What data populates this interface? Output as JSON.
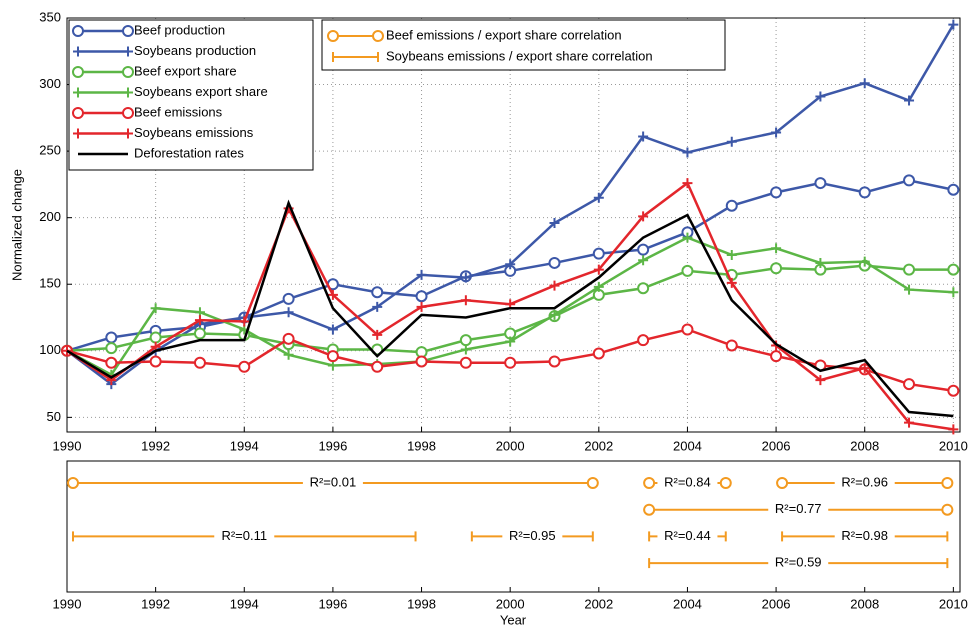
{
  "chart_data": [
    {
      "type": "line",
      "y_label": "Normalized change",
      "x": [
        1990,
        1991,
        1992,
        1993,
        1994,
        1995,
        1996,
        1997,
        1998,
        1999,
        2000,
        2001,
        2002,
        2003,
        2004,
        2005,
        2006,
        2007,
        2008,
        2009,
        2010
      ],
      "xlim": [
        1990,
        2010.15
      ],
      "xticks": [
        1990,
        1992,
        1994,
        1996,
        1998,
        2000,
        2002,
        2004,
        2006,
        2008,
        2010
      ],
      "ylim": [
        39,
        350
      ],
      "yticks": [
        50,
        100,
        150,
        200,
        250,
        300,
        350
      ],
      "grid": true,
      "legend": "upper left",
      "series": [
        {
          "name": "Beef production",
          "color": "#3d58a8",
          "marker": "o",
          "values": [
            100,
            110,
            115,
            118,
            125,
            139,
            150,
            144,
            141,
            156,
            160,
            166,
            173,
            176,
            189,
            209,
            219,
            226,
            219,
            228,
            221
          ]
        },
        {
          "name": "Soybeans production",
          "color": "#3d58a8",
          "marker": "+",
          "values": [
            100,
            75,
            100,
            120,
            125,
            129,
            116,
            133,
            157,
            155,
            165,
            196,
            215,
            261,
            249,
            257,
            264,
            291,
            301,
            288,
            345
          ]
        },
        {
          "name": "Beef export share",
          "color": "#5cb646",
          "marker": "o",
          "values": [
            100,
            102,
            110,
            113,
            112,
            105,
            101,
            101,
            99,
            108,
            113,
            126,
            142,
            147,
            160,
            157,
            162,
            161,
            164,
            161,
            161
          ]
        },
        {
          "name": "Soybeans export share",
          "color": "#5cb646",
          "marker": "+",
          "values": [
            100,
            82,
            132,
            129,
            116,
            97,
            89,
            90,
            92,
            101,
            107,
            127,
            148,
            168,
            185,
            172,
            177,
            166,
            167,
            146,
            144
          ]
        },
        {
          "name": "Beef emissions",
          "color": "#e3262c",
          "marker": "o",
          "values": [
            100,
            91,
            92,
            91,
            88,
            109,
            96,
            88,
            92,
            91,
            91,
            92,
            98,
            108,
            116,
            104,
            96,
            89,
            86,
            75,
            70
          ]
        },
        {
          "name": "Soybeans emissions",
          "color": "#e3262c",
          "marker": "+",
          "values": [
            100,
            78,
            103,
            123,
            122,
            207,
            142,
            112,
            133,
            138,
            135,
            149,
            161,
            201,
            226,
            151,
            104,
            78,
            87,
            46,
            41
          ]
        },
        {
          "name": "Deforestation rates",
          "color": "#000000",
          "marker": "none",
          "values": [
            100,
            80,
            100,
            108,
            108,
            211,
            132,
            96,
            127,
            125,
            132,
            132,
            155,
            185,
            202,
            138,
            105,
            85,
            93,
            54,
            51
          ]
        }
      ]
    },
    {
      "type": "interval",
      "x_label": "Year",
      "xlim": [
        1990,
        2010.15
      ],
      "xticks": [
        1990,
        1992,
        1994,
        1996,
        1998,
        2000,
        2002,
        2004,
        2006,
        2008,
        2010
      ],
      "series": [
        {
          "name": "Beef emissions / export share correlation",
          "color": "#f39a20",
          "marker": "o",
          "segments": [
            {
              "start": 1990,
              "end": 2002,
              "row": 1,
              "label": "R²=0.01"
            },
            {
              "start": 2003,
              "end": 2005,
              "row": 1,
              "label": "R²=0.84"
            },
            {
              "start": 2006,
              "end": 2010,
              "row": 1,
              "label": "R²=0.96"
            },
            {
              "start": 2003,
              "end": 2010,
              "row": 2,
              "label": "R²=0.77"
            }
          ]
        },
        {
          "name": "Soybeans emissions / export share correlation",
          "color": "#f39a20",
          "marker": "|",
          "segments": [
            {
              "start": 1990,
              "end": 1998,
              "row": 3,
              "label": "R²=0.11"
            },
            {
              "start": 1999,
              "end": 2002,
              "row": 3,
              "label": "R²=0.95"
            },
            {
              "start": 2003,
              "end": 2005,
              "row": 3,
              "label": "R²=0.44"
            },
            {
              "start": 2006,
              "end": 2010,
              "row": 3,
              "label": "R²=0.98"
            },
            {
              "start": 2003,
              "end": 2010,
              "row": 4,
              "label": "R²=0.59"
            }
          ]
        }
      ]
    }
  ]
}
